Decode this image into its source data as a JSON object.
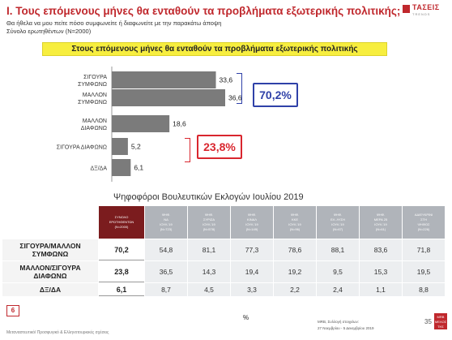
{
  "header": {
    "title": "Ι. Τους επόμενους μήνες θα ενταθούν τα προβλήματα εξωτερικής πολιτικής;",
    "subtitle": "Θα ήθελα να μου πείτε πόσο συμφωνείτε ή διαφωνείτε με την παρακάτω άποψη",
    "sample": "Σύνολο ερωτηθέντων (Ν=2000)",
    "logo_name": "ΤΑΣΕΙΣ",
    "logo_tag": "TRENDS"
  },
  "banner": "Στους επόμενους μήνες θα ενταθούν τα προβλήματα εξωτερικής πολιτικής",
  "colors": {
    "bar": "#7b7b7b",
    "agree_accent": "#2f41a8",
    "disagree_accent": "#d9262e",
    "banner": "#f7ee3f",
    "brand": "#c0282d"
  },
  "chart_data": {
    "type": "bar",
    "orientation": "horizontal",
    "categories": [
      [
        "ΣΙΓΟΥΡΑ",
        "ΣΥΜΦΩΝΩ"
      ],
      [
        "ΜΑΛΛΟΝ",
        "ΣΥΜΦΩΝΩ"
      ],
      [
        "ΜΑΛΛΟΝ",
        "ΔΙΑΦΩΝΩ"
      ],
      [
        "ΣΙΓΟΥΡΑ ΔΙΑΦΩΝΩ"
      ],
      [
        "ΔΞ/ΔΑ"
      ]
    ],
    "values": [
      33.6,
      36.6,
      18.6,
      5.2,
      6.1
    ],
    "value_labels": [
      "33,6",
      "36,6",
      "18,6",
      "5,2",
      "6,1"
    ],
    "xlim": [
      0,
      36.6
    ],
    "callouts": [
      {
        "text": "70,2%"
      },
      {
        "text": "23,8%"
      }
    ]
  },
  "table": {
    "title": "Ψηφοφόροι Βουλευτικών Εκλογών Ιουλίου 2019",
    "headers": [
      [
        "ΣΥΝΟΛΟ",
        "ΕΡΩΤΗΘΕΝΤΩΝ",
        "(Ν=2000)"
      ],
      [
        "ΨΗΦ.",
        "ΝΔ",
        "ΙΟΥΛ.'19",
        "(Ν=723)"
      ],
      [
        "ΨΗΦ.",
        "ΣΥΡΙΖΑ",
        "ΙΟΥΛ.'19",
        "(Ν=578)"
      ],
      [
        "ΨΗΦ.",
        "ΚΙΝΑΛ",
        "ΙΟΥΛ.'19",
        "(Ν=149)"
      ],
      [
        "ΨΗΦ.",
        "ΚΚΕ",
        "ΙΟΥΛ.'19",
        "(Ν=96)"
      ],
      [
        "ΨΗΦ.",
        "ΕΛ. ΛΥΣΗ",
        "ΙΟΥΛ.'19",
        "(Ν=67)"
      ],
      [
        "ΨΗΦ.",
        "ΜΕΡΑ 25",
        "ΙΟΥΛ.'19",
        "(Ν=61)"
      ],
      [
        "ΑΔΙΕΥΚΡΙΝΙ",
        "ΣΤΗ",
        "ΨΗΦΟΣ",
        "(Ν=226)"
      ]
    ],
    "rows": [
      {
        "label": [
          "ΣΙΓΟΥΡΑ/ΜΑΛΛΟΝ",
          "ΣΥΜΦΩΝΩ"
        ],
        "total": "70,2",
        "cells": [
          "54,8",
          "81,1",
          "77,3",
          "78,6",
          "88,1",
          "83,6",
          "71,8"
        ]
      },
      {
        "label": [
          "ΜΑΛΛΟΝ/ΣΙΓΟΥΡΑ",
          "ΔΙΑΦΩΝΩ"
        ],
        "total": "23,8",
        "cells": [
          "36,5",
          "14,3",
          "19,4",
          "19,2",
          "9,5",
          "15,3",
          "19,5"
        ]
      },
      {
        "label": [
          "ΔΞ/ΔΑ"
        ],
        "total": "6,1",
        "cells": [
          "8,7",
          "4,5",
          "3,3",
          "2,2",
          "2,4",
          "1,1",
          "8,8"
        ]
      }
    ]
  },
  "footer": {
    "page_box": "6",
    "unit": "%",
    "slide_number": "35",
    "mrb_label": "MRB",
    "mrb_sub": "ΜΕΛΟΣ ΤΗΣ",
    "source_line1": "MRB, Συλλογή στοιχείων:",
    "source_line2": "27 Νοεμβρίου - 5 Δεκεμβρίου 2019",
    "methodology": "Μεταναστευτικό/ Προσφυγικό & Ελληνοτουρκικές σχέσεις"
  }
}
